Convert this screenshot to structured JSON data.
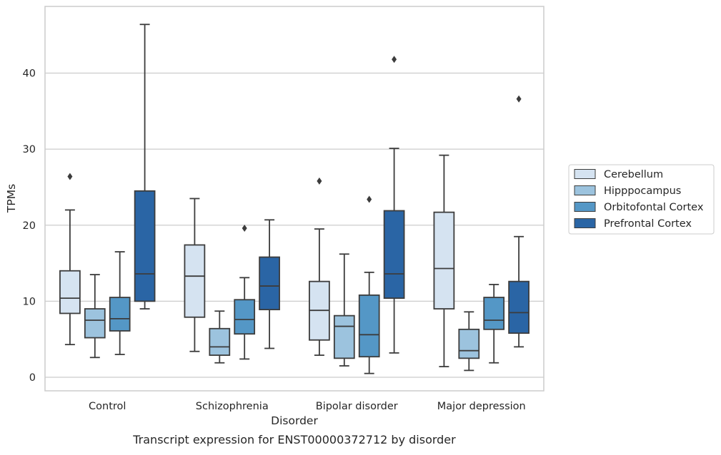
{
  "chart_data": {
    "type": "box",
    "title": "",
    "caption": "Transcript expression for ENST00000372712 by disorder",
    "xlabel": "Disorder",
    "ylabel": "TPMs",
    "ylim": [
      -1.7,
      48.7
    ],
    "yticks": [
      0,
      10,
      20,
      30,
      40
    ],
    "grid": "horizontal",
    "legend_position": "right",
    "categories": [
      "Control",
      "Schizophrenia",
      "Bipolar disorder",
      "Major depression"
    ],
    "series": [
      {
        "name": "Cerebellum",
        "color": "#d5e3f1",
        "boxes": [
          {
            "whisker_low": 4.3,
            "q1": 8.4,
            "median": 10.4,
            "q3": 14.0,
            "whisker_high": 22.0,
            "outliers": [
              26.4
            ]
          },
          {
            "whisker_low": 3.4,
            "q1": 7.9,
            "median": 13.3,
            "q3": 17.4,
            "whisker_high": 23.5,
            "outliers": []
          },
          {
            "whisker_low": 2.9,
            "q1": 4.9,
            "median": 8.8,
            "q3": 12.6,
            "whisker_high": 19.5,
            "outliers": [
              25.8
            ]
          },
          {
            "whisker_low": 1.4,
            "q1": 9.0,
            "median": 14.3,
            "q3": 21.7,
            "whisker_high": 29.2,
            "outliers": []
          }
        ]
      },
      {
        "name": "Hipppocampus",
        "color": "#9cc3de",
        "boxes": [
          {
            "whisker_low": 2.6,
            "q1": 5.2,
            "median": 7.5,
            "q3": 9.0,
            "whisker_high": 13.5,
            "outliers": []
          },
          {
            "whisker_low": 1.9,
            "q1": 2.9,
            "median": 4.0,
            "q3": 6.4,
            "whisker_high": 8.7,
            "outliers": []
          },
          {
            "whisker_low": 1.5,
            "q1": 2.5,
            "median": 6.7,
            "q3": 8.1,
            "whisker_high": 16.2,
            "outliers": []
          },
          {
            "whisker_low": 0.9,
            "q1": 2.5,
            "median": 3.5,
            "q3": 6.3,
            "whisker_high": 8.6,
            "outliers": []
          }
        ]
      },
      {
        "name": "Orbitofontal Cortex",
        "color": "#5497c6",
        "boxes": [
          {
            "whisker_low": 3.0,
            "q1": 6.1,
            "median": 7.7,
            "q3": 10.5,
            "whisker_high": 16.5,
            "outliers": []
          },
          {
            "whisker_low": 2.4,
            "q1": 5.7,
            "median": 7.6,
            "q3": 10.2,
            "whisker_high": 13.1,
            "outliers": [
              19.6
            ]
          },
          {
            "whisker_low": 0.5,
            "q1": 2.7,
            "median": 5.6,
            "q3": 10.8,
            "whisker_high": 13.8,
            "outliers": [
              23.4
            ]
          },
          {
            "whisker_low": 1.9,
            "q1": 6.3,
            "median": 7.5,
            "q3": 10.5,
            "whisker_high": 12.2,
            "outliers": []
          }
        ]
      },
      {
        "name": "Prefrontal Cortex",
        "color": "#2a65a5",
        "boxes": [
          {
            "whisker_low": 9.0,
            "q1": 10.0,
            "median": 13.6,
            "q3": 24.5,
            "whisker_high": 46.4,
            "outliers": []
          },
          {
            "whisker_low": 3.8,
            "q1": 8.9,
            "median": 12.0,
            "q3": 15.8,
            "whisker_high": 20.7,
            "outliers": []
          },
          {
            "whisker_low": 3.2,
            "q1": 10.4,
            "median": 13.6,
            "q3": 21.9,
            "whisker_high": 30.1,
            "outliers": [
              41.8
            ]
          },
          {
            "whisker_low": 4.0,
            "q1": 5.8,
            "median": 8.5,
            "q3": 12.6,
            "whisker_high": 18.5,
            "outliers": [
              36.6
            ]
          }
        ]
      }
    ]
  }
}
